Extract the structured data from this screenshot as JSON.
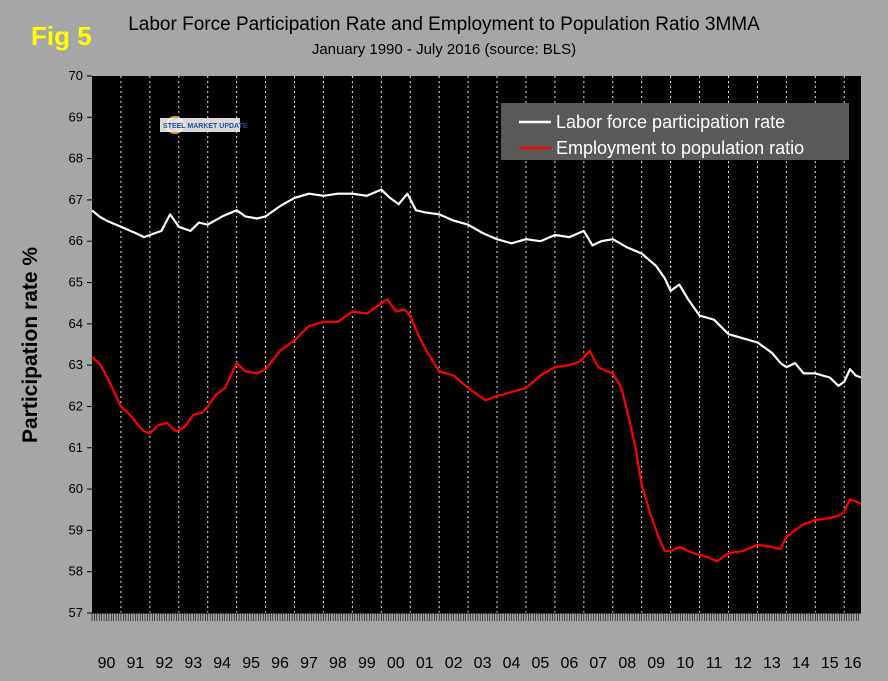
{
  "figure_label": "Fig 5",
  "logo_text": "STEEL MARKET UPDATE",
  "chart_data": {
    "type": "line",
    "title": "Labor Force Participation Rate and Employment to Population Ratio 3MMA",
    "subtitle": "January 1990 - July 2016 (source: BLS)",
    "ylabel": "Participation rate %",
    "xlabel": "",
    "ylim": [
      57,
      70
    ],
    "yticks": [
      57,
      58,
      59,
      60,
      61,
      62,
      63,
      64,
      65,
      66,
      67,
      68,
      69,
      70
    ],
    "xlim": [
      1990.0,
      2016.58
    ],
    "categories": [
      "90",
      "91",
      "92",
      "93",
      "94",
      "95",
      "96",
      "97",
      "98",
      "99",
      "00",
      "01",
      "02",
      "03",
      "04",
      "05",
      "06",
      "07",
      "08",
      "09",
      "10",
      "11",
      "12",
      "13",
      "14",
      "15",
      "16"
    ],
    "grid": "vertical dashed lines at year boundaries",
    "legend_position": "top-right",
    "background": "#000000",
    "series": [
      {
        "name": "Labor force participation rate",
        "color": "#ffffff",
        "x": [
          1990.0,
          1990.25,
          1990.5,
          1991.0,
          1991.5,
          1991.8,
          1992.0,
          1992.4,
          1992.7,
          1993.0,
          1993.4,
          1993.7,
          1994.0,
          1994.5,
          1995.0,
          1995.3,
          1995.7,
          1996.0,
          1996.5,
          1997.0,
          1997.5,
          1998.0,
          1998.5,
          1999.0,
          1999.5,
          2000.0,
          2000.3,
          2000.6,
          2000.9,
          2001.2,
          2001.5,
          2002.0,
          2002.5,
          2003.0,
          2003.5,
          2004.0,
          2004.5,
          2005.0,
          2005.5,
          2006.0,
          2006.5,
          2007.0,
          2007.3,
          2007.6,
          2008.0,
          2008.5,
          2009.0,
          2009.5,
          2009.8,
          2010.0,
          2010.3,
          2010.6,
          2011.0,
          2011.5,
          2012.0,
          2012.5,
          2013.0,
          2013.5,
          2013.8,
          2014.0,
          2014.3,
          2014.6,
          2015.0,
          2015.5,
          2015.8,
          2016.0,
          2016.2,
          2016.4,
          2016.58
        ],
        "y": [
          66.75,
          66.6,
          66.5,
          66.35,
          66.2,
          66.1,
          66.15,
          66.25,
          66.65,
          66.35,
          66.25,
          66.45,
          66.4,
          66.6,
          66.75,
          66.6,
          66.55,
          66.6,
          66.85,
          67.05,
          67.15,
          67.1,
          67.15,
          67.15,
          67.1,
          67.25,
          67.05,
          66.9,
          67.15,
          66.75,
          66.7,
          66.65,
          66.5,
          66.4,
          66.2,
          66.05,
          65.95,
          66.05,
          66.0,
          66.15,
          66.1,
          66.25,
          65.9,
          66.0,
          66.05,
          65.85,
          65.7,
          65.4,
          65.1,
          64.8,
          64.95,
          64.6,
          64.2,
          64.1,
          63.75,
          63.65,
          63.55,
          63.3,
          63.05,
          62.95,
          63.05,
          62.8,
          62.8,
          62.7,
          62.5,
          62.6,
          62.9,
          62.75,
          62.7
        ]
      },
      {
        "name": "Employment to population ratio",
        "color": "#ff0000",
        "x": [
          1990.0,
          1990.3,
          1990.6,
          1991.0,
          1991.3,
          1991.6,
          1991.8,
          1992.0,
          1992.3,
          1992.6,
          1992.9,
          1993.2,
          1993.5,
          1993.8,
          1994.0,
          1994.3,
          1994.6,
          1995.0,
          1995.3,
          1995.7,
          1996.0,
          1996.5,
          1997.0,
          1997.5,
          1998.0,
          1998.5,
          1999.0,
          1999.5,
          2000.0,
          2000.2,
          2000.5,
          2000.8,
          2001.0,
          2001.3,
          2001.6,
          2002.0,
          2002.5,
          2003.0,
          2003.3,
          2003.6,
          2004.0,
          2004.5,
          2005.0,
          2005.5,
          2006.0,
          2006.5,
          2006.9,
          2007.2,
          2007.5,
          2007.8,
          2008.0,
          2008.3,
          2008.6,
          2008.8,
          2009.0,
          2009.3,
          2009.6,
          2009.8,
          2010.0,
          2010.3,
          2010.6,
          2011.0,
          2011.3,
          2011.6,
          2012.0,
          2012.5,
          2013.0,
          2013.5,
          2013.8,
          2014.0,
          2014.3,
          2014.6,
          2015.0,
          2015.5,
          2015.8,
          2016.0,
          2016.2,
          2016.4,
          2016.58
        ],
        "y": [
          63.2,
          63.0,
          62.6,
          62.0,
          61.8,
          61.55,
          61.4,
          61.35,
          61.55,
          61.6,
          61.4,
          61.5,
          61.8,
          61.85,
          62.0,
          62.3,
          62.45,
          63.05,
          62.85,
          62.8,
          62.9,
          63.35,
          63.6,
          63.95,
          64.05,
          64.05,
          64.3,
          64.25,
          64.5,
          64.6,
          64.3,
          64.35,
          64.2,
          63.7,
          63.3,
          62.85,
          62.75,
          62.45,
          62.3,
          62.15,
          62.25,
          62.35,
          62.45,
          62.75,
          62.95,
          63.0,
          63.1,
          63.35,
          62.95,
          62.85,
          62.8,
          62.45,
          61.6,
          60.95,
          60.1,
          59.4,
          58.8,
          58.5,
          58.5,
          58.6,
          58.5,
          58.4,
          58.35,
          58.25,
          58.45,
          58.5,
          58.65,
          58.6,
          58.55,
          58.85,
          59.0,
          59.15,
          59.25,
          59.3,
          59.35,
          59.45,
          59.75,
          59.7,
          59.65
        ]
      }
    ]
  }
}
